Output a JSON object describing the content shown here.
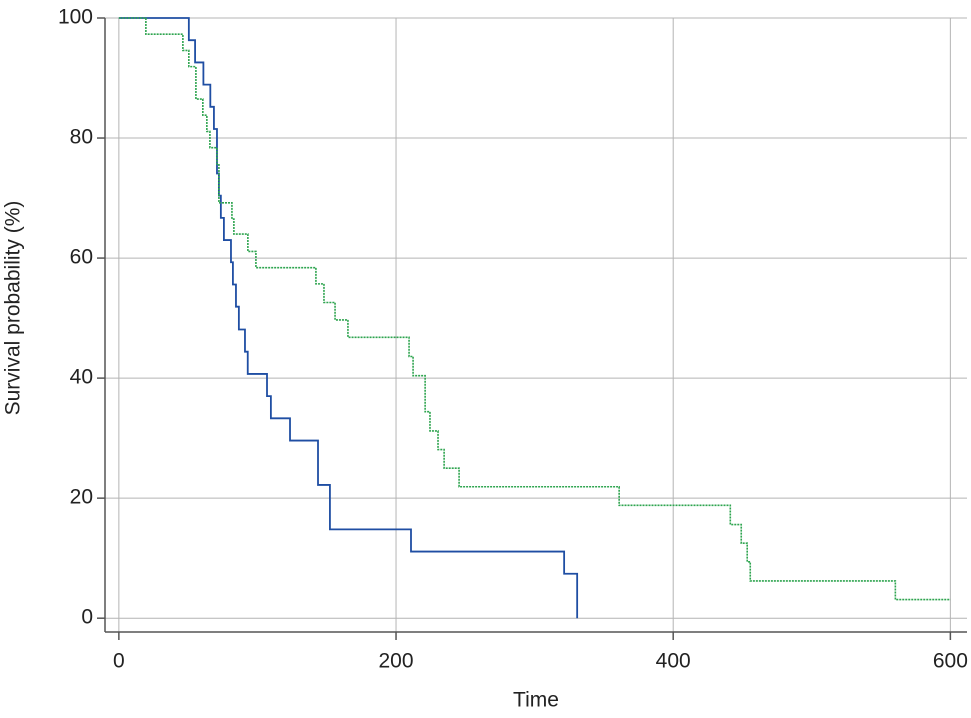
{
  "chart_data": {
    "type": "step",
    "xlabel": "Time",
    "ylabel": "Survival probability (%)",
    "xlim": [
      -10,
      612
    ],
    "ylim": [
      -2.3,
      100
    ],
    "xticks": [
      0,
      200,
      400,
      600
    ],
    "yticks": [
      0,
      20,
      40,
      60,
      80,
      100
    ],
    "grid": true,
    "series": [
      {
        "color": "#1f4ea3",
        "dashed": false,
        "x": [
          0,
          50.5,
          55,
          61,
          66,
          68.6,
          70.8,
          72.2,
          73.6,
          75.8,
          80.9,
          82.3,
          84.5,
          86.6,
          91,
          93,
          106.9,
          109.7,
          123.5,
          143.7,
          152.3,
          210.8,
          321.3,
          330.7,
          330.7
        ],
        "values": [
          100,
          96.3,
          92.6,
          88.9,
          85.2,
          81.5,
          74.1,
          70.4,
          66.7,
          63,
          59.3,
          55.6,
          51.9,
          48.1,
          44.4,
          40.7,
          37,
          33.3,
          29.6,
          22.2,
          14.8,
          11.1,
          7.4,
          7.4,
          0
        ]
      },
      {
        "color": "#2ea44f",
        "dashed": true,
        "x": [
          0,
          19.5,
          46.2,
          50.5,
          55.6,
          60.6,
          63.5,
          65.7,
          70.8,
          72.2,
          81.6,
          83,
          93.1,
          98.9,
          142.2,
          148,
          156,
          165.3,
          209.4,
          212.3,
          221,
          224.5,
          230.3,
          234.7,
          245.5,
          361,
          441.2,
          449.1,
          453.4,
          455.6,
          560.3,
          600
        ],
        "values": [
          100,
          97.3,
          94.6,
          91.9,
          86.5,
          83.8,
          81.1,
          78.4,
          75.7,
          69.2,
          66.5,
          64,
          61.1,
          58.4,
          55.7,
          52.6,
          49.7,
          46.8,
          43.6,
          40.4,
          34.4,
          31.2,
          28.1,
          25,
          21.9,
          18.8,
          15.6,
          12.5,
          9.4,
          6.2,
          3.1,
          3.1
        ]
      }
    ]
  }
}
